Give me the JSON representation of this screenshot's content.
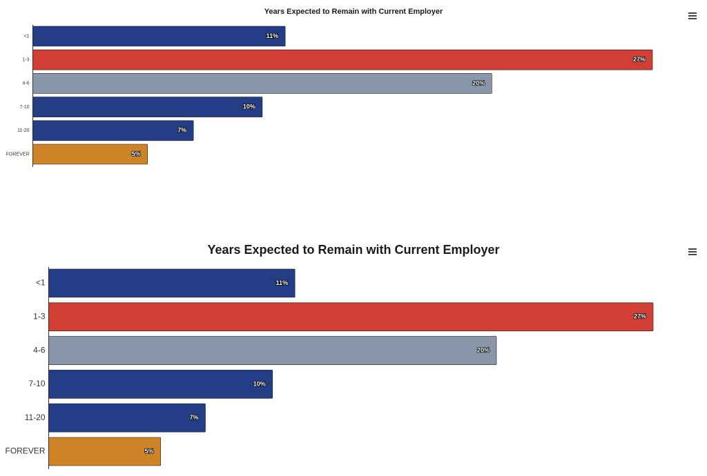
{
  "charts": {
    "top": {
      "title": "Years Expected to Remain with Current Employer",
      "menu_icon": "hamburger-menu-icon"
    },
    "bottom": {
      "title": "Years Expected to Remain with Current Employer",
      "menu_icon": "hamburger-menu-icon"
    }
  },
  "chart_data": [
    {
      "type": "bar",
      "orientation": "horizontal",
      "title": "Years Expected to Remain with Current Employer",
      "categories": [
        "<1",
        "1-3",
        "4-6",
        "7-10",
        "11-20",
        "FOREVER"
      ],
      "values": [
        11,
        27,
        20,
        10,
        7,
        5
      ],
      "data_labels": [
        "11%",
        "27%",
        "20%",
        "10%",
        "7%",
        "5%"
      ],
      "colors": [
        "#233d87",
        "#d13f35",
        "#8a96a9",
        "#233d87",
        "#233d87",
        "#cc8426"
      ],
      "xlim": [
        0,
        27
      ],
      "grid": false,
      "legend": "none"
    },
    {
      "type": "bar",
      "orientation": "horizontal",
      "title": "Years Expected to Remain with Current Employer",
      "categories": [
        "<1",
        "1-3",
        "4-6",
        "7-10",
        "11-20",
        "FOREVER"
      ],
      "values": [
        11,
        27,
        20,
        10,
        7,
        5
      ],
      "data_labels": [
        "11%",
        "27%",
        "20%",
        "10%",
        "7%",
        "5%"
      ],
      "colors": [
        "#233d87",
        "#d13f35",
        "#8a96a9",
        "#233d87",
        "#233d87",
        "#cc8426"
      ],
      "xlim": [
        0,
        27
      ],
      "grid": false,
      "legend": "none"
    }
  ]
}
